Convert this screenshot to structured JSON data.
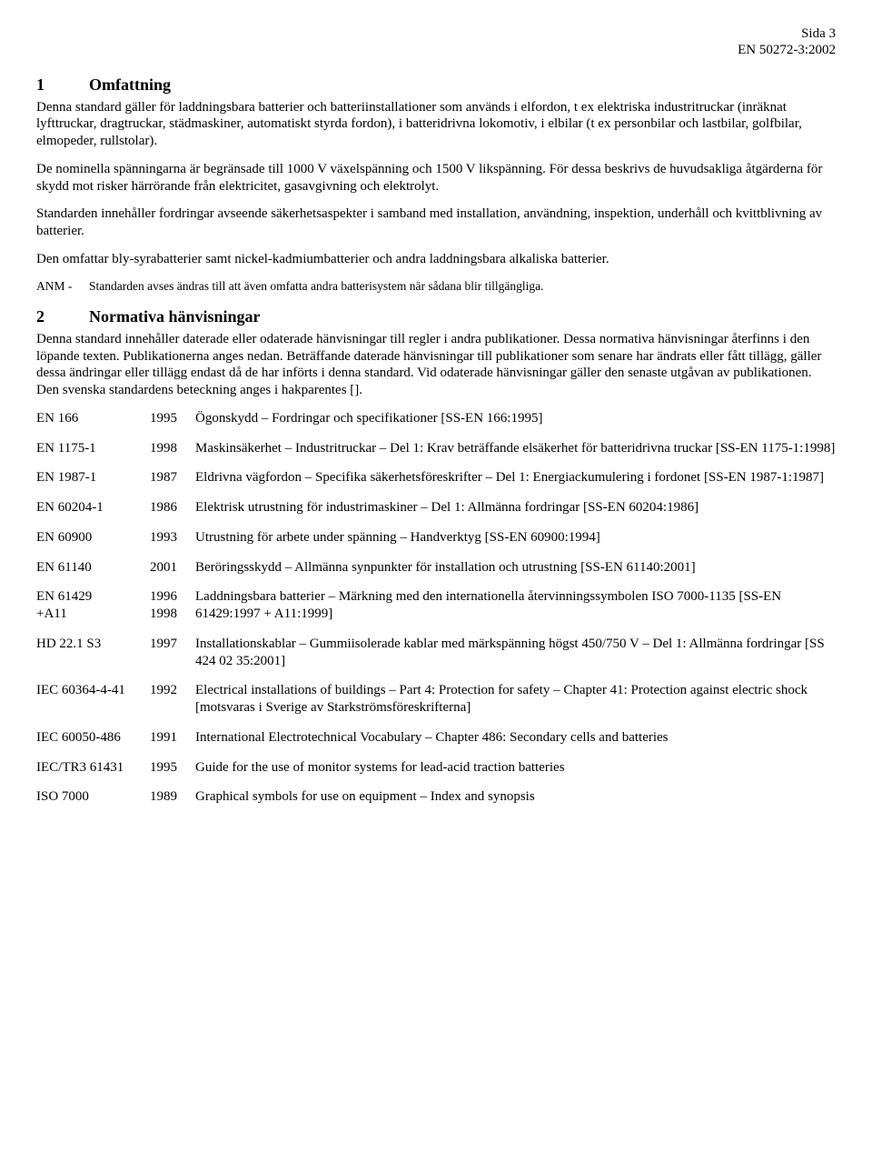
{
  "header": {
    "page": "Sida 3",
    "doc": "EN 50272-3:2002"
  },
  "section1": {
    "num": "1",
    "title": "Omfattning",
    "p1": "Denna standard gäller för laddningsbara batterier och batteriinstallationer som används i elfordon, t ex elektriska industritruckar (inräknat lyfttruckar, dragtruckar, städmaskiner, automatiskt styrda fordon), i batteridrivna lokomotiv, i elbilar (t ex personbilar och lastbilar, golfbilar, elmopeder, rullstolar).",
    "p2": "De nominella spänningarna är begränsade till 1000 V växelspänning och 1500 V likspänning. För dessa beskrivs de huvudsakliga åtgärderna för skydd mot risker härrörande från elektricitet, gasavgivning och elektrolyt.",
    "p3": "Standarden innehåller fordringar avseende säkerhetsaspekter i samband med installation, användning, inspektion, underhåll och kvittblivning av batterier.",
    "p4": "Den omfattar bly-syrabatterier samt nickel-kadmiumbatterier och andra laddningsbara alkaliska batterier.",
    "anm_label": "ANM -",
    "anm_text": "Standarden avses ändras till att även omfatta andra batterisystem när sådana blir tillgängliga."
  },
  "section2": {
    "num": "2",
    "title": "Normativa hänvisningar",
    "p1": "Denna standard innehåller daterade eller odaterade hänvisningar till regler i andra publikationer. Dessa normativa hänvisningar återfinns i den löpande texten. Publikationerna anges nedan. Beträffande daterade hänvisningar till publikationer som senare har ändrats eller fått tillägg, gäller dessa ändringar eller tillägg endast då de har införts i denna standard. Vid odaterade hänvisningar gäller den senaste utgåvan av publikationen. Den svenska standardens beteckning anges i hakparentes []."
  },
  "refs": [
    {
      "code": "EN 166",
      "year": "1995",
      "desc": "Ögonskydd – Fordringar och specifikationer [SS-EN 166:1995]"
    },
    {
      "code": "EN 1175-1",
      "year": "1998",
      "desc": "Maskinsäkerhet – Industritruckar – Del 1: Krav beträffande elsäkerhet för batteridrivna truckar [SS-EN 1175-1:1998]"
    },
    {
      "code": "EN 1987-1",
      "year": "1987",
      "desc": "Eldrivna vägfordon – Specifika säkerhetsföreskrifter – Del 1: Energiackumulering i fordonet [SS-EN 1987-1:1987]"
    },
    {
      "code": "EN 60204-1",
      "year": "1986",
      "desc": "Elektrisk utrustning för industrimaskiner – Del 1: Allmänna fordringar [SS-EN 60204:1986]"
    },
    {
      "code": "EN 60900",
      "year": "1993",
      "desc": "Utrustning för arbete under spänning – Handverktyg [SS-EN 60900:1994]"
    },
    {
      "code": "EN 61140",
      "year": "2001",
      "desc": "Beröringsskydd – Allmänna synpunkter för installation och utrustning [SS-EN 61140:2001]"
    },
    {
      "code": "EN 61429\n+A11",
      "year": "1996\n1998",
      "desc": "Laddningsbara batterier – Märkning med den internationella återvinningssymbolen ISO 7000-1135 [SS-EN 61429:1997 + A11:1999]"
    },
    {
      "code": "HD 22.1 S3",
      "year": "1997",
      "desc": "Installationskablar – Gummiisolerade kablar med märkspänning högst 450/750 V – Del 1: Allmänna fordringar [SS 424 02 35:2001]"
    },
    {
      "code": "IEC 60364-4-41",
      "year": "1992",
      "desc": "Electrical installations of buildings – Part 4: Protection for safety – Chapter 41: Protection against electric shock [motsvaras i Sverige av Starkströmsföreskrifterna]"
    },
    {
      "code": "IEC 60050-486",
      "year": "1991",
      "desc": "International Electrotechnical Vocabulary – Chapter 486: Secondary cells and batteries"
    },
    {
      "code": "IEC/TR3 61431",
      "year": "1995",
      "desc": "Guide for the use of monitor systems for lead-acid traction batteries"
    },
    {
      "code": "ISO 7000",
      "year": "1989",
      "desc": "Graphical symbols for use on equipment – Index and synopsis"
    }
  ]
}
